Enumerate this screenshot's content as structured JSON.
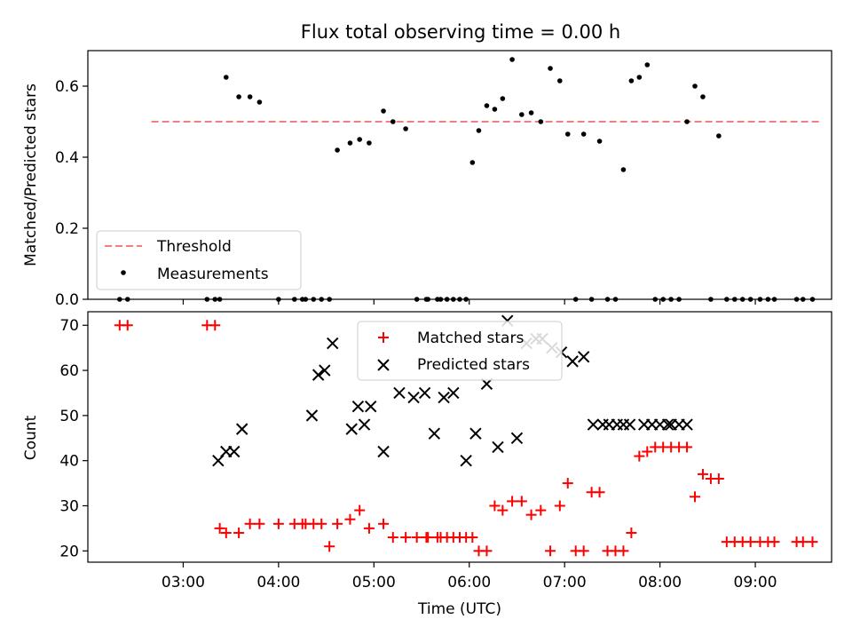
{
  "chart_data": [
    {
      "type": "scatter",
      "title": "Flux total observing time = 0.00 h",
      "xlabel": "",
      "ylabel": "Matched/Predicted stars",
      "ylim": [
        0,
        0.7
      ],
      "yticks": [
        0.0,
        0.2,
        0.4,
        0.6
      ],
      "ytick_labels": [
        "0.0",
        "0.2",
        "0.4",
        "0.6"
      ],
      "legend_position": "lower-left",
      "series": [
        {
          "name": "Threshold",
          "kind": "line",
          "style": "dashed",
          "color": "#f08080",
          "x": [
            "02:40",
            "09:40"
          ],
          "y": [
            0.5,
            0.5
          ]
        },
        {
          "name": "Measurements",
          "kind": "points",
          "color": "#000000",
          "x": [
            "02:20",
            "02:25",
            "03:15",
            "03:20",
            "03:23",
            "03:27",
            "03:35",
            "03:42",
            "03:48",
            "04:00",
            "04:10",
            "04:15",
            "04:17",
            "04:22",
            "04:27",
            "04:32",
            "04:37",
            "04:45",
            "04:51",
            "04:57",
            "05:06",
            "05:12",
            "05:20",
            "05:27",
            "05:33",
            "05:34",
            "05:40",
            "05:42",
            "05:46",
            "05:50",
            "05:54",
            "05:58",
            "06:02",
            "06:06",
            "06:11",
            "06:16",
            "06:21",
            "06:27",
            "06:33",
            "06:39",
            "06:45",
            "06:51",
            "06:57",
            "07:02",
            "07:07",
            "07:12",
            "07:17",
            "07:22",
            "07:27",
            "07:32",
            "07:37",
            "07:42",
            "07:47",
            "07:52",
            "07:57",
            "08:02",
            "08:07",
            "08:12",
            "08:17",
            "08:22",
            "08:27",
            "08:32",
            "08:37",
            "08:42",
            "08:47",
            "08:52",
            "08:57",
            "09:03",
            "09:08",
            "09:12",
            "09:26",
            "09:30",
            "09:36"
          ],
          "y": [
            0,
            0,
            0,
            0,
            0,
            0.625,
            0.57,
            0.57,
            0.555,
            0,
            0,
            0,
            0,
            0,
            0,
            0,
            0.42,
            0.44,
            0.45,
            0.44,
            0.53,
            0.5,
            0.48,
            0,
            0,
            0,
            0,
            0,
            0,
            0,
            0,
            0,
            0.385,
            0.475,
            0.545,
            0.535,
            0.565,
            0.675,
            0.52,
            0.525,
            0.5,
            0.65,
            0.615,
            0.465,
            0,
            0.465,
            0,
            0.445,
            0,
            0,
            0.365,
            0.615,
            0.625,
            0.66,
            0,
            0,
            0,
            0,
            0.5,
            0.6,
            0.57,
            0,
            0.46,
            0,
            0,
            0,
            0,
            0,
            0,
            0,
            0,
            0,
            0
          ]
        }
      ]
    },
    {
      "type": "scatter",
      "title": "",
      "xlabel": "Time (UTC)",
      "ylabel": "Count",
      "ylim": [
        17.5,
        73
      ],
      "yticks": [
        20,
        30,
        40,
        50,
        60,
        70
      ],
      "ytick_labels": [
        "20",
        "30",
        "40",
        "50",
        "60",
        "70"
      ],
      "xticks": [
        "03:00",
        "04:00",
        "05:00",
        "06:00",
        "07:00",
        "08:00",
        "09:00"
      ],
      "xtick_labels": [
        "03:00",
        "04:00",
        "05:00",
        "06:00",
        "07:00",
        "08:00",
        "09:00"
      ],
      "xlim": [
        "02:00",
        "09:48"
      ],
      "legend_position": "top-center",
      "series": [
        {
          "name": "Matched stars",
          "marker": "plus",
          "color": "#ff0000",
          "x": [
            "02:20",
            "02:25",
            "03:15",
            "03:20",
            "03:23",
            "03:27",
            "03:35",
            "03:42",
            "03:48",
            "04:00",
            "04:10",
            "04:15",
            "04:17",
            "04:22",
            "04:27",
            "04:32",
            "04:37",
            "04:45",
            "04:51",
            "04:57",
            "05:06",
            "05:12",
            "05:20",
            "05:27",
            "05:33",
            "05:34",
            "05:40",
            "05:42",
            "05:46",
            "05:50",
            "05:54",
            "05:58",
            "06:02",
            "06:06",
            "06:11",
            "06:16",
            "06:21",
            "06:27",
            "06:33",
            "06:39",
            "06:45",
            "06:51",
            "06:57",
            "07:02",
            "07:07",
            "07:12",
            "07:17",
            "07:22",
            "07:27",
            "07:32",
            "07:37",
            "07:42",
            "07:47",
            "07:52",
            "07:57",
            "08:02",
            "08:07",
            "08:12",
            "08:17",
            "08:22",
            "08:27",
            "08:32",
            "08:37",
            "08:42",
            "08:47",
            "08:52",
            "08:57",
            "09:03",
            "09:08",
            "09:12",
            "09:26",
            "09:30",
            "09:36"
          ],
          "y": [
            70,
            70,
            70,
            70,
            25,
            24,
            24,
            26,
            26,
            26,
            26,
            26,
            26,
            26,
            26,
            21,
            26,
            27,
            29,
            25,
            26,
            23,
            23,
            23,
            23,
            23,
            23,
            23,
            23,
            23,
            23,
            23,
            23,
            20,
            20,
            30,
            29,
            31,
            31,
            28,
            29,
            20,
            30,
            35,
            20,
            20,
            33,
            33,
            20,
            20,
            20,
            24,
            41,
            42,
            43,
            43,
            43,
            43,
            43,
            32,
            37,
            36,
            36,
            22,
            22,
            22,
            22,
            22,
            22,
            22,
            22,
            22,
            22
          ]
        },
        {
          "name": "Predicted stars",
          "marker": "x",
          "color": "#000000",
          "x": [
            "03:22",
            "03:27",
            "03:32",
            "03:37",
            "04:21",
            "04:25",
            "04:29",
            "04:34",
            "04:46",
            "04:50",
            "04:54",
            "04:58",
            "05:06",
            "05:16",
            "05:25",
            "05:32",
            "05:38",
            "05:44",
            "05:50",
            "05:58",
            "06:04",
            "06:11",
            "06:18",
            "06:24",
            "06:30",
            "06:36",
            "06:42",
            "06:46",
            "06:52",
            "06:58",
            "07:05",
            "07:12",
            "07:18",
            "07:24",
            "07:28",
            "07:33",
            "07:37",
            "07:41",
            "07:50",
            "07:55",
            "08:00",
            "08:05",
            "08:07",
            "08:12",
            "08:17"
          ],
          "y": [
            40,
            42,
            42,
            47,
            50,
            59,
            60,
            66,
            47,
            52,
            48,
            52,
            42,
            55,
            54,
            55,
            46,
            54,
            55,
            40,
            46,
            57,
            43,
            71,
            45,
            66,
            67,
            67,
            65,
            64,
            62,
            63,
            48,
            48,
            48,
            48,
            48,
            48,
            48,
            48,
            48,
            48,
            48,
            48,
            48
          ]
        }
      ]
    }
  ]
}
